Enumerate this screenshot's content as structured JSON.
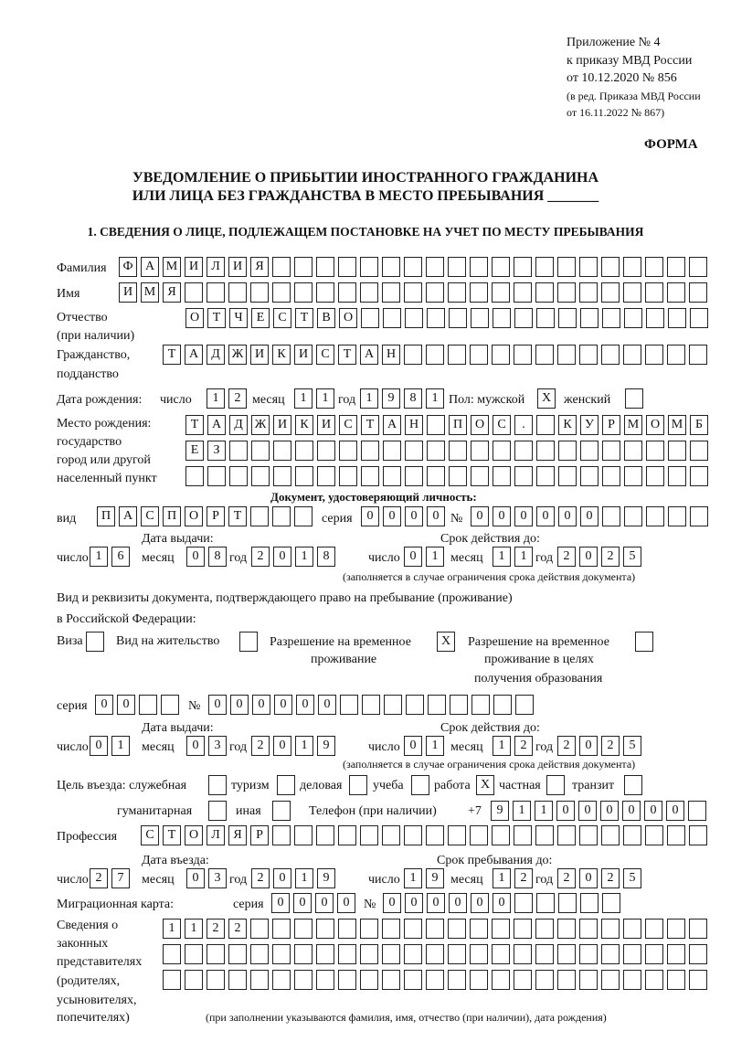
{
  "header": {
    "appendix": "Приложение № 4",
    "order": "к приказу МВД России",
    "order_date": "от 10.12.2020 № 856",
    "revision1": "(в ред. Приказа МВД России",
    "revision2": "от 16.11.2022 № 867)",
    "form": "ФОРМА",
    "title1": "УВЕДОМЛЕНИЕ О ПРИБЫТИИ ИНОСТРАННОГО ГРАЖДАНИНА",
    "title2": "ИЛИ ЛИЦА БЕЗ ГРАЖДАНСТВА В МЕСТО ПРЕБЫВАНИЯ _______",
    "section1": "1. СВЕДЕНИЯ О ЛИЦЕ, ПОДЛЕЖАЩЕМ ПОСТАНОВКЕ НА УЧЕТ ПО МЕСТУ ПРЕБЫВАНИЯ"
  },
  "labels": {
    "surname": "Фамилия",
    "name": "Имя",
    "patronymic": "Отчество",
    "patronymic2": "(при наличии)",
    "citizenship": "Гражданство,",
    "citizenship2": "подданство",
    "birth_date": "Дата рождения:",
    "day": "число",
    "month": "месяц",
    "year": "год",
    "sex": "Пол: мужской",
    "female": "женский",
    "birthplace": "Место рождения:",
    "birthplace2": "государство",
    "birthplace3": "город или другой",
    "birthplace4": "населенный пункт",
    "id_doc": "Документ, удостоверяющий личность:",
    "kind": "вид",
    "series": "серия",
    "number": "№",
    "issue_date": "Дата выдачи:",
    "valid_until": "Срок действия до:",
    "fill_note": "(заполняется в случае ограничения срока действия документа)",
    "residence_doc1": "Вид и реквизиты документа, подтверждающего право на пребывание (проживание)",
    "residence_doc2": "в Российской Федерации:",
    "visa": "Виза",
    "residence_permit": "Вид на жительство",
    "temp_permit1": "Разрешение на временное",
    "temp_permit2": "проживание",
    "edu_permit1": "Разрешение на временное",
    "edu_permit2": "проживание в целях",
    "edu_permit3": "получения образования",
    "purpose": "Цель въезда: служебная",
    "tourism": "туризм",
    "business": "деловая",
    "study": "учеба",
    "work": "работа",
    "private": "частная",
    "transit": "транзит",
    "humanitarian": "гуманитарная",
    "other": "иная",
    "phone": "Телефон (при наличии)",
    "phone_prefix": "+7",
    "profession": "Профессия",
    "entry_date": "Дата въезда:",
    "stay_until": "Срок пребывания до:",
    "migration_card": "Миграционная карта:",
    "reps1": "Сведения о",
    "reps2": "законных",
    "reps3": "представителях",
    "reps4": "(родителях,",
    "reps5": "усыновителях,",
    "reps6": "попечителях)",
    "reps_note": "(при заполнении указываются фамилия, имя, отчество (при наличии), дата рождения)"
  },
  "person": {
    "surname": "ФАМИЛИЯ",
    "name": "ИМЯ",
    "patronymic": "ОТЧЕСТВО",
    "citizenship": "ТАДЖИКИСТАН",
    "birth_day": "12",
    "birth_month": "11",
    "birth_year": "1981",
    "male": "X",
    "female": "",
    "birthplace1": "ТАДЖИКИСТАН ПОС. КУРМОМБ",
    "birthplace2": "ЕЗ",
    "birthplace3": ""
  },
  "id_document": {
    "kind": "ПАСПОРТ",
    "series": "0000",
    "number": "000000",
    "issue_day": "16",
    "issue_month": "08",
    "issue_year": "2018",
    "valid_day": "01",
    "valid_month": "11",
    "valid_year": "2025"
  },
  "residence_document": {
    "visa": "",
    "residence_permit": "",
    "temp_permit": "X",
    "edu_permit": "",
    "series": "00",
    "number": "000000",
    "issue_day": "01",
    "issue_month": "03",
    "issue_year": "2019",
    "valid_day": "01",
    "valid_month": "12",
    "valid_year": "2025"
  },
  "purpose": {
    "official": "",
    "tourism": "",
    "business": "",
    "study": "",
    "work": "X",
    "private": "",
    "transit": "",
    "humanitarian": "",
    "other": ""
  },
  "phone": "911000000",
  "profession": "СТОЛЯР",
  "entry": {
    "day": "27",
    "month": "03",
    "year": "2019",
    "until_day": "19",
    "until_month": "12",
    "until_year": "2025"
  },
  "migration_card": {
    "series": "0000",
    "number": "000000"
  },
  "representatives": {
    "line1": "1122",
    "line2": "",
    "line3": ""
  }
}
